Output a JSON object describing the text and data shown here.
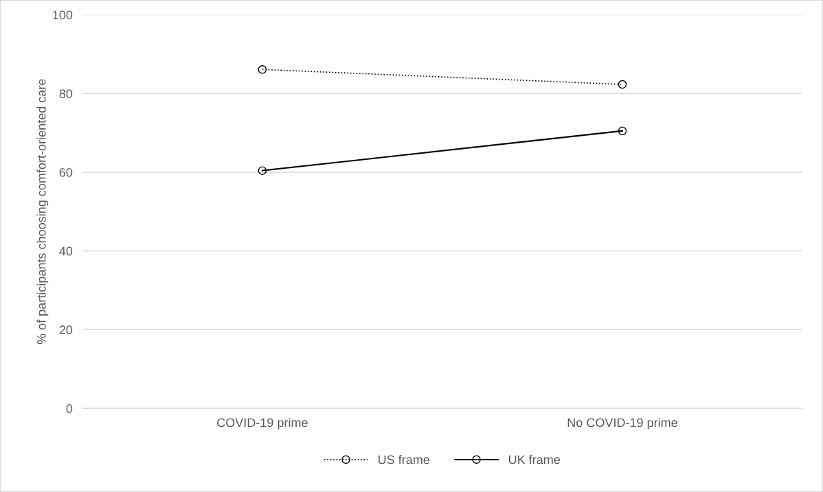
{
  "chart_data": {
    "type": "line",
    "ylabel": "% of participants choosing comfort-oriented care",
    "categories": [
      "COVID-19 prime",
      "No COVID-19 prime"
    ],
    "series": [
      {
        "name": "US frame",
        "color": "#000000",
        "values": [
          86.1,
          82.3
        ],
        "line_style": "dotted"
      },
      {
        "name": "UK frame",
        "color": "#000000",
        "values": [
          60.4,
          70.5
        ],
        "line_style": "solid"
      }
    ],
    "ylim": [
      0,
      100
    ],
    "yticks": [
      0,
      20,
      40,
      60,
      80,
      100
    ],
    "grid": "y",
    "legend": "bottom",
    "marker": "circle"
  }
}
